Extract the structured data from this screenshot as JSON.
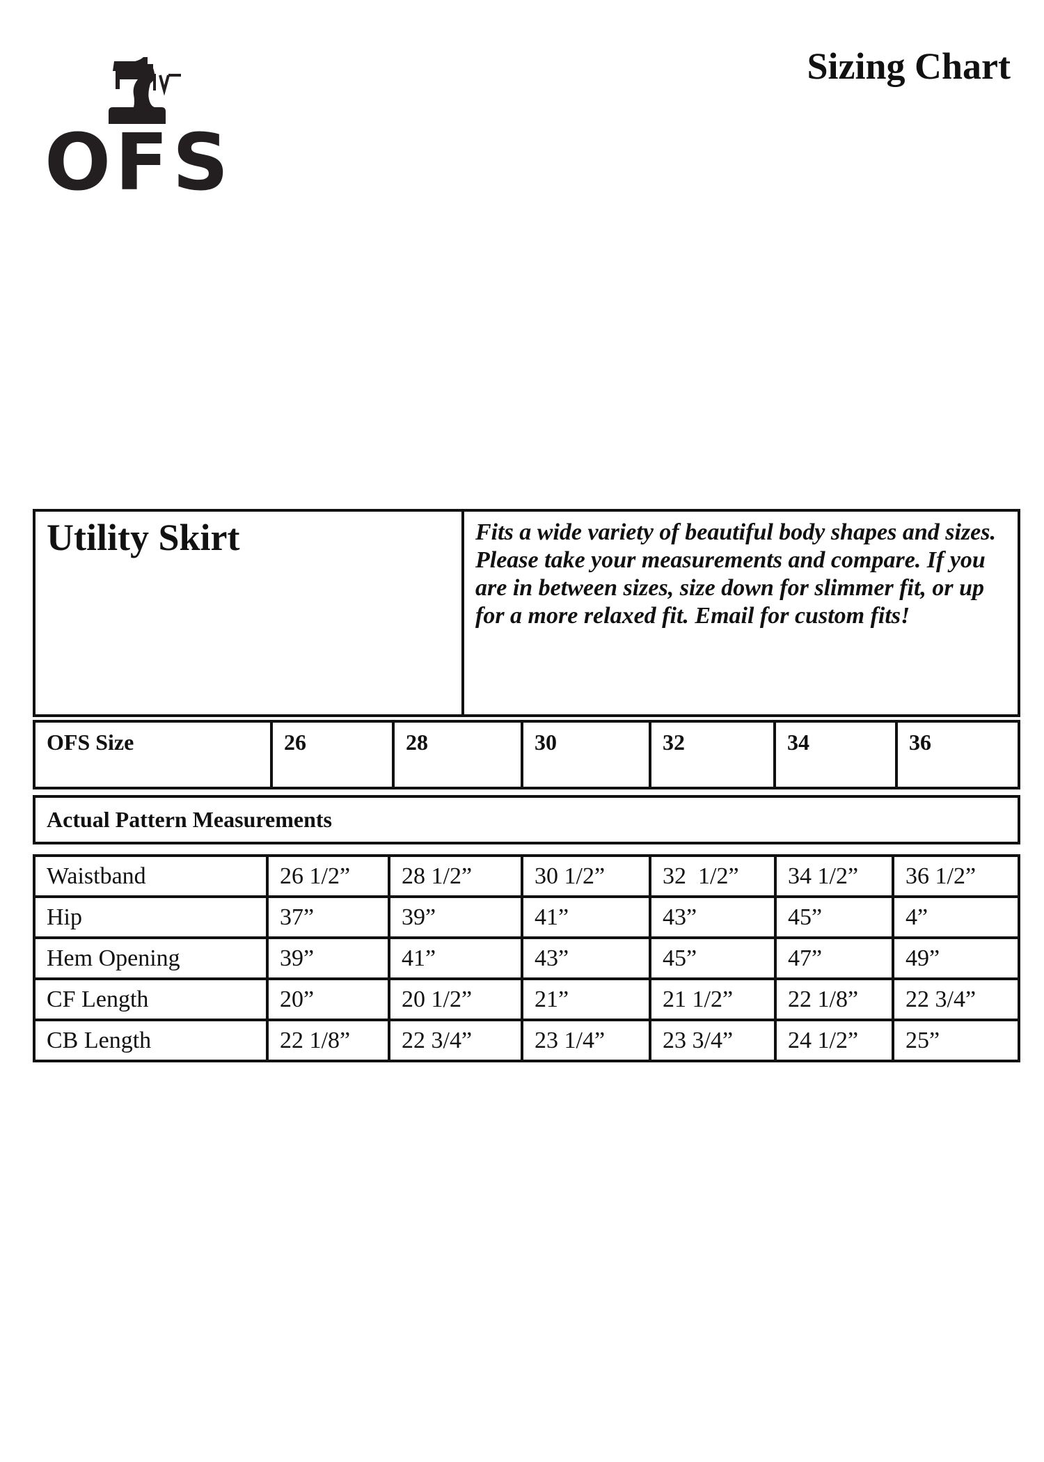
{
  "header": {
    "title": "Sizing Chart",
    "logo_text": "OFS",
    "logo_icon": "sewing-machine-icon"
  },
  "product": {
    "name": "Utility Skirt",
    "description": "Fits a wide variety of beautiful body shapes and sizes. Please take your measurements and compare. If you are in between sizes, size down for slimmer fit, or up for a more relaxed fit. Email for custom fits!"
  },
  "sizes": {
    "label": "OFS Size",
    "values": [
      "26",
      "28",
      "30",
      "32",
      "34",
      "36"
    ]
  },
  "section_title": "Actual Pattern Measurements",
  "measurements": [
    {
      "label": "Waistband",
      "values": [
        "26 1/2”",
        "28 1/2”",
        "30 1/2”",
        "32  1/2”",
        "34 1/2”",
        "36 1/2”"
      ]
    },
    {
      "label": "Hip",
      "values": [
        "37”",
        "39”",
        "41”",
        "43”",
        "45”",
        "4”"
      ]
    },
    {
      "label": "Hem Opening",
      "values": [
        "39”",
        "41”",
        "43”",
        "45”",
        "47”",
        "49”"
      ]
    },
    {
      "label": "CF Length",
      "values": [
        "20”",
        "20 1/2”",
        "21”",
        "21 1/2”",
        "22 1/8”",
        "22 3/4”"
      ]
    },
    {
      "label": "CB Length",
      "values": [
        "22 1/8”",
        "22 3/4”",
        "23 1/4”",
        "23 3/4”",
        "24 1/2”",
        "25”"
      ]
    }
  ]
}
